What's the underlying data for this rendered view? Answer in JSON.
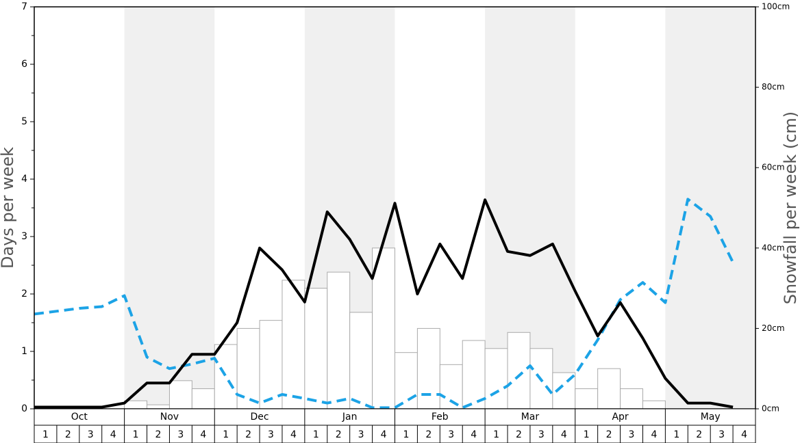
{
  "chart_data": {
    "type": "combo",
    "ylabel": "Days per week",
    "y2label": "Snowfall per week (cm)",
    "months": [
      "Oct",
      "Nov",
      "Dec",
      "Jan",
      "Feb",
      "Mar",
      "Apr",
      "May"
    ],
    "categories": [
      1,
      2,
      3,
      4,
      1,
      2,
      3,
      4,
      1,
      2,
      3,
      4,
      1,
      2,
      3,
      4,
      1,
      2,
      3,
      4,
      1,
      2,
      3,
      4,
      1,
      2,
      3,
      4,
      1,
      2,
      3,
      4
    ],
    "ylim": [
      0,
      7
    ],
    "yticks": [
      0,
      1,
      2,
      3,
      4,
      5,
      6,
      7
    ],
    "yminorticks": [
      0.5,
      1.5,
      2.5,
      3.5,
      4.5,
      5.5,
      6.5
    ],
    "y2lim": [
      0,
      100
    ],
    "y2ticks": [
      {
        "value": 0,
        "label": "0cm"
      },
      {
        "value": 20,
        "label": "20cm"
      },
      {
        "value": 40,
        "label": "40cm"
      },
      {
        "value": 60,
        "label": "60cm"
      },
      {
        "value": 80,
        "label": "80cm"
      },
      {
        "value": 100,
        "label": "100cm"
      }
    ],
    "series": [
      {
        "type": "bar",
        "axis": "y2",
        "color": "#ffffff",
        "values": [
          0,
          0,
          0,
          0,
          2,
          1,
          7,
          5,
          16,
          20,
          22,
          32,
          30,
          34,
          24,
          40,
          14,
          20,
          11,
          17,
          15,
          19,
          15,
          9,
          5,
          10,
          5,
          2,
          0,
          0,
          0,
          0
        ]
      },
      {
        "type": "line",
        "color": "#1ca3e6",
        "dashed": true,
        "values": [
          1.65,
          1.7,
          1.75,
          1.78,
          1.97,
          0.9,
          0.7,
          0.78,
          0.88,
          0.25,
          0.1,
          0.25,
          0.18,
          0.1,
          0.18,
          0.02,
          0.02,
          0.25,
          0.25,
          0.02,
          0.18,
          0.4,
          0.75,
          0.25,
          0.6,
          1.2,
          1.9,
          2.2,
          1.85,
          3.65,
          3.35,
          2.55
        ]
      },
      {
        "type": "line",
        "color": "#000000",
        "dashed": false,
        "values": [
          0.03,
          0.03,
          0.03,
          0.03,
          0.1,
          0.45,
          0.45,
          0.95,
          0.95,
          1.5,
          2.8,
          2.42,
          1.86,
          3.43,
          2.95,
          2.27,
          3.58,
          2.0,
          2.87,
          2.27,
          3.64,
          2.74,
          2.67,
          2.87,
          2.05,
          1.27,
          1.85,
          1.23,
          0.53,
          0.1,
          0.1,
          0.03
        ]
      }
    ]
  }
}
